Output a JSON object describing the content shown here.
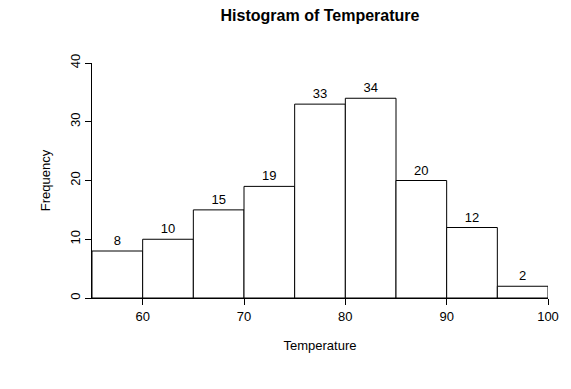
{
  "chart_data": {
    "type": "histogram",
    "title": "Histogram of Temperature",
    "x_label": "Temperature",
    "y_label": "Frequency",
    "bins": [
      55,
      60,
      65,
      70,
      75,
      80,
      85,
      90,
      95,
      100
    ],
    "values": [
      8,
      10,
      15,
      19,
      33,
      34,
      20,
      12,
      2
    ],
    "color": "#ffffff",
    "data_labels": true,
    "grid": false,
    "xlim": [
      55,
      100
    ],
    "xticks": [
      60,
      70,
      80,
      90,
      100
    ],
    "ylim": [
      0,
      40
    ],
    "yticks": [
      0,
      10,
      20,
      30,
      40
    ]
  }
}
